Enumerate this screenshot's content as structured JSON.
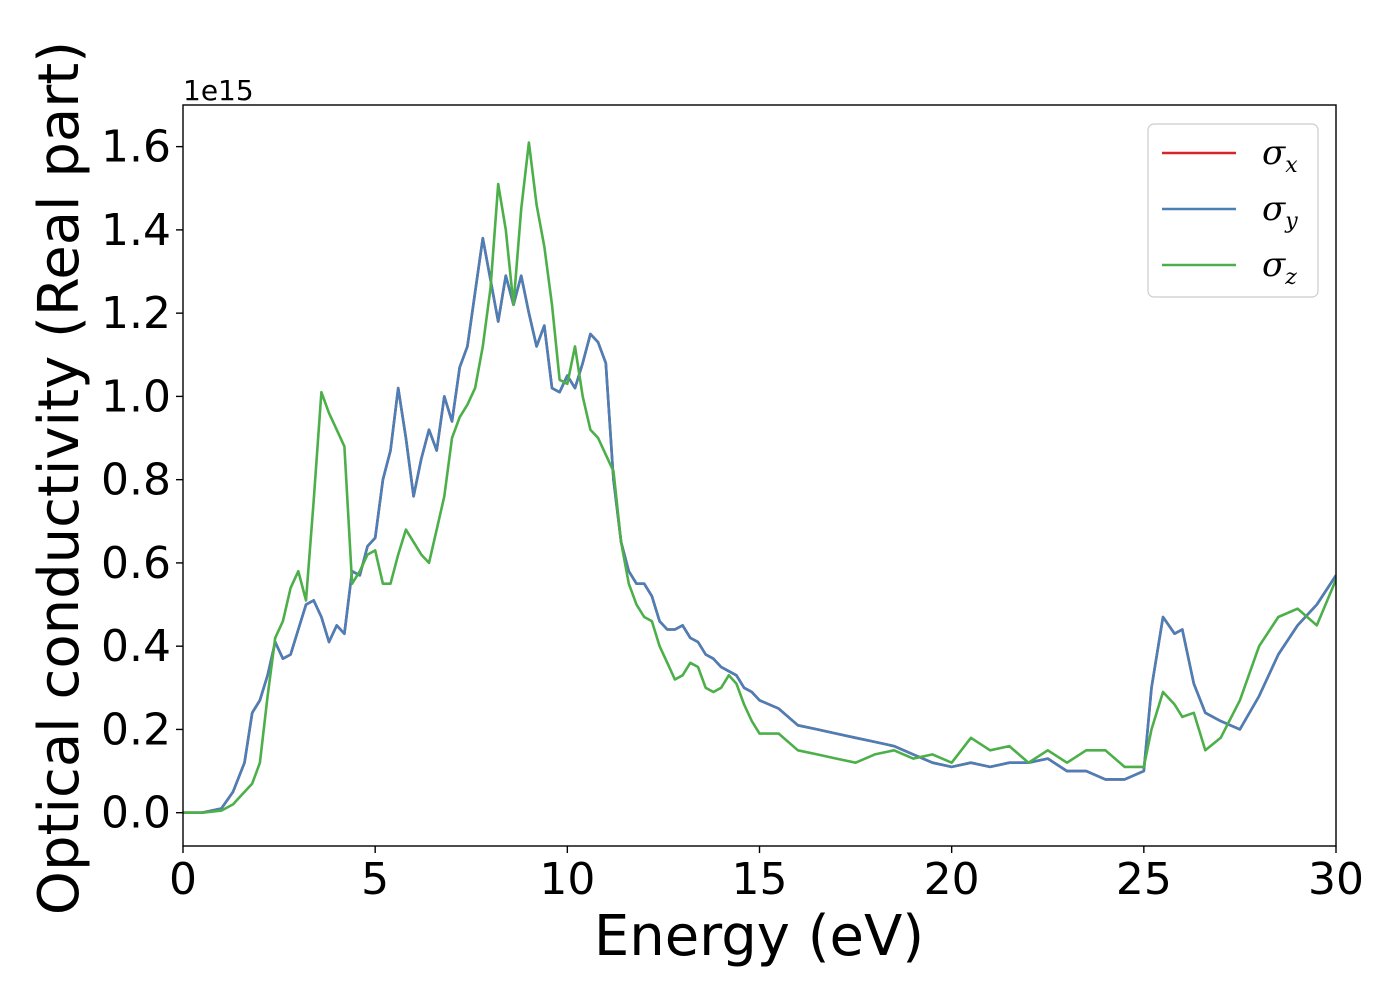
{
  "chart_data": {
    "type": "line",
    "xlabel": "Energy (eV)",
    "ylabel": "Optical conductivity (Real part)",
    "y_offset_label": "1e15",
    "xlim": [
      0,
      30
    ],
    "ylim": [
      -0.08,
      1.7
    ],
    "x_ticks": [
      0,
      5,
      10,
      15,
      20,
      25,
      30
    ],
    "x_tick_labels": [
      "0",
      "5",
      "10",
      "15",
      "20",
      "25",
      "30"
    ],
    "y_ticks": [
      0.0,
      0.2,
      0.4,
      0.6,
      0.8,
      1.0,
      1.2,
      1.4,
      1.6
    ],
    "y_tick_labels": [
      "0.0",
      "0.2",
      "0.4",
      "0.6",
      "0.8",
      "1.0",
      "1.2",
      "1.4",
      "1.6"
    ],
    "grid": false,
    "legend_position": "top-right",
    "series": [
      {
        "name": "σx",
        "symbol": "σ",
        "sub": "x",
        "color": "#d62728",
        "x": [
          0,
          0.5,
          1,
          1.3,
          1.6,
          1.8,
          2.0,
          2.2,
          2.4,
          2.6,
          2.8,
          3.0,
          3.2,
          3.4,
          3.6,
          3.8,
          4.0,
          4.2,
          4.4,
          4.6,
          4.8,
          5.0,
          5.2,
          5.4,
          5.6,
          5.8,
          6.0,
          6.2,
          6.4,
          6.6,
          6.8,
          7.0,
          7.2,
          7.4,
          7.6,
          7.8,
          8.0,
          8.2,
          8.4,
          8.6,
          8.8,
          9.0,
          9.2,
          9.4,
          9.6,
          9.8,
          10.0,
          10.2,
          10.4,
          10.6,
          10.8,
          11.0,
          11.2,
          11.4,
          11.6,
          11.8,
          12.0,
          12.2,
          12.4,
          12.6,
          12.8,
          13.0,
          13.2,
          13.4,
          13.6,
          13.8,
          14.0,
          14.2,
          14.4,
          14.6,
          14.8,
          15.0,
          15.5,
          16.0,
          16.5,
          17.0,
          17.5,
          18.0,
          18.5,
          19.0,
          19.5,
          20.0,
          20.5,
          21.0,
          21.5,
          22.0,
          22.5,
          23.0,
          23.5,
          24.0,
          24.5,
          25.0,
          25.2,
          25.5,
          25.8,
          26.0,
          26.3,
          26.6,
          27.0,
          27.5,
          28.0,
          28.5,
          29.0,
          29.5,
          30.0
        ],
        "values": [
          0,
          0,
          0.01,
          0.05,
          0.12,
          0.24,
          0.27,
          0.33,
          0.41,
          0.37,
          0.38,
          0.44,
          0.5,
          0.51,
          0.47,
          0.41,
          0.45,
          0.43,
          0.58,
          0.57,
          0.64,
          0.66,
          0.8,
          0.87,
          1.02,
          0.9,
          0.76,
          0.85,
          0.92,
          0.87,
          1.0,
          0.94,
          1.07,
          1.12,
          1.25,
          1.38,
          1.28,
          1.18,
          1.29,
          1.22,
          1.29,
          1.2,
          1.12,
          1.17,
          1.02,
          1.01,
          1.05,
          1.02,
          1.08,
          1.15,
          1.13,
          1.08,
          0.8,
          0.65,
          0.58,
          0.55,
          0.55,
          0.52,
          0.46,
          0.44,
          0.44,
          0.45,
          0.42,
          0.41,
          0.38,
          0.37,
          0.35,
          0.34,
          0.33,
          0.3,
          0.29,
          0.27,
          0.25,
          0.21,
          0.2,
          0.19,
          0.18,
          0.17,
          0.16,
          0.14,
          0.12,
          0.11,
          0.12,
          0.11,
          0.12,
          0.12,
          0.13,
          0.1,
          0.1,
          0.08,
          0.08,
          0.1,
          0.3,
          0.47,
          0.43,
          0.44,
          0.31,
          0.24,
          0.22,
          0.2,
          0.28,
          0.38,
          0.45,
          0.5,
          0.57
        ]
      },
      {
        "name": "σy",
        "symbol": "σ",
        "sub": "y",
        "color": "#4a7fb8",
        "x": [
          0,
          0.5,
          1,
          1.3,
          1.6,
          1.8,
          2.0,
          2.2,
          2.4,
          2.6,
          2.8,
          3.0,
          3.2,
          3.4,
          3.6,
          3.8,
          4.0,
          4.2,
          4.4,
          4.6,
          4.8,
          5.0,
          5.2,
          5.4,
          5.6,
          5.8,
          6.0,
          6.2,
          6.4,
          6.6,
          6.8,
          7.0,
          7.2,
          7.4,
          7.6,
          7.8,
          8.0,
          8.2,
          8.4,
          8.6,
          8.8,
          9.0,
          9.2,
          9.4,
          9.6,
          9.8,
          10.0,
          10.2,
          10.4,
          10.6,
          10.8,
          11.0,
          11.2,
          11.4,
          11.6,
          11.8,
          12.0,
          12.2,
          12.4,
          12.6,
          12.8,
          13.0,
          13.2,
          13.4,
          13.6,
          13.8,
          14.0,
          14.2,
          14.4,
          14.6,
          14.8,
          15.0,
          15.5,
          16.0,
          16.5,
          17.0,
          17.5,
          18.0,
          18.5,
          19.0,
          19.5,
          20.0,
          20.5,
          21.0,
          21.5,
          22.0,
          22.5,
          23.0,
          23.5,
          24.0,
          24.5,
          25.0,
          25.2,
          25.5,
          25.8,
          26.0,
          26.3,
          26.6,
          27.0,
          27.5,
          28.0,
          28.5,
          29.0,
          29.5,
          30.0
        ],
        "values": [
          0,
          0,
          0.01,
          0.05,
          0.12,
          0.24,
          0.27,
          0.33,
          0.41,
          0.37,
          0.38,
          0.44,
          0.5,
          0.51,
          0.47,
          0.41,
          0.45,
          0.43,
          0.58,
          0.57,
          0.64,
          0.66,
          0.8,
          0.87,
          1.02,
          0.9,
          0.76,
          0.85,
          0.92,
          0.87,
          1.0,
          0.94,
          1.07,
          1.12,
          1.25,
          1.38,
          1.28,
          1.18,
          1.29,
          1.22,
          1.29,
          1.2,
          1.12,
          1.17,
          1.02,
          1.01,
          1.05,
          1.02,
          1.08,
          1.15,
          1.13,
          1.08,
          0.8,
          0.65,
          0.58,
          0.55,
          0.55,
          0.52,
          0.46,
          0.44,
          0.44,
          0.45,
          0.42,
          0.41,
          0.38,
          0.37,
          0.35,
          0.34,
          0.33,
          0.3,
          0.29,
          0.27,
          0.25,
          0.21,
          0.2,
          0.19,
          0.18,
          0.17,
          0.16,
          0.14,
          0.12,
          0.11,
          0.12,
          0.11,
          0.12,
          0.12,
          0.13,
          0.1,
          0.1,
          0.08,
          0.08,
          0.1,
          0.3,
          0.47,
          0.43,
          0.44,
          0.31,
          0.24,
          0.22,
          0.2,
          0.28,
          0.38,
          0.45,
          0.5,
          0.57
        ]
      },
      {
        "name": "σz",
        "symbol": "σ",
        "sub": "z",
        "color": "#4daf4a",
        "x": [
          0,
          0.5,
          1,
          1.3,
          1.6,
          1.8,
          2.0,
          2.2,
          2.4,
          2.6,
          2.8,
          3.0,
          3.2,
          3.4,
          3.6,
          3.8,
          4.0,
          4.2,
          4.4,
          4.6,
          4.8,
          5.0,
          5.2,
          5.4,
          5.6,
          5.8,
          6.0,
          6.2,
          6.4,
          6.6,
          6.8,
          7.0,
          7.2,
          7.4,
          7.6,
          7.8,
          8.0,
          8.2,
          8.4,
          8.6,
          8.8,
          9.0,
          9.2,
          9.4,
          9.6,
          9.8,
          10.0,
          10.2,
          10.4,
          10.6,
          10.8,
          11.0,
          11.2,
          11.4,
          11.6,
          11.8,
          12.0,
          12.2,
          12.4,
          12.6,
          12.8,
          13.0,
          13.2,
          13.4,
          13.6,
          13.8,
          14.0,
          14.2,
          14.4,
          14.6,
          14.8,
          15.0,
          15.5,
          16.0,
          16.5,
          17.0,
          17.5,
          18.0,
          18.5,
          19.0,
          19.5,
          20.0,
          20.5,
          21.0,
          21.5,
          22.0,
          22.5,
          23.0,
          23.5,
          24.0,
          24.5,
          25.0,
          25.2,
          25.5,
          25.8,
          26.0,
          26.3,
          26.6,
          27.0,
          27.5,
          28.0,
          28.5,
          29.0,
          29.5,
          30.0
        ],
        "values": [
          0,
          0,
          0.005,
          0.02,
          0.05,
          0.07,
          0.12,
          0.28,
          0.42,
          0.46,
          0.54,
          0.58,
          0.51,
          0.75,
          1.01,
          0.96,
          0.92,
          0.88,
          0.55,
          0.58,
          0.62,
          0.63,
          0.55,
          0.55,
          0.62,
          0.68,
          0.65,
          0.62,
          0.6,
          0.68,
          0.76,
          0.9,
          0.95,
          0.98,
          1.02,
          1.12,
          1.26,
          1.51,
          1.4,
          1.22,
          1.45,
          1.61,
          1.46,
          1.36,
          1.22,
          1.04,
          1.03,
          1.12,
          1.0,
          0.92,
          0.9,
          0.86,
          0.82,
          0.65,
          0.55,
          0.5,
          0.47,
          0.46,
          0.4,
          0.36,
          0.32,
          0.33,
          0.36,
          0.35,
          0.3,
          0.29,
          0.3,
          0.33,
          0.31,
          0.26,
          0.22,
          0.19,
          0.19,
          0.15,
          0.14,
          0.13,
          0.12,
          0.14,
          0.15,
          0.13,
          0.14,
          0.12,
          0.18,
          0.15,
          0.16,
          0.12,
          0.15,
          0.12,
          0.15,
          0.15,
          0.11,
          0.11,
          0.2,
          0.29,
          0.26,
          0.23,
          0.24,
          0.15,
          0.18,
          0.27,
          0.4,
          0.47,
          0.49,
          0.45,
          0.56
        ]
      }
    ]
  }
}
